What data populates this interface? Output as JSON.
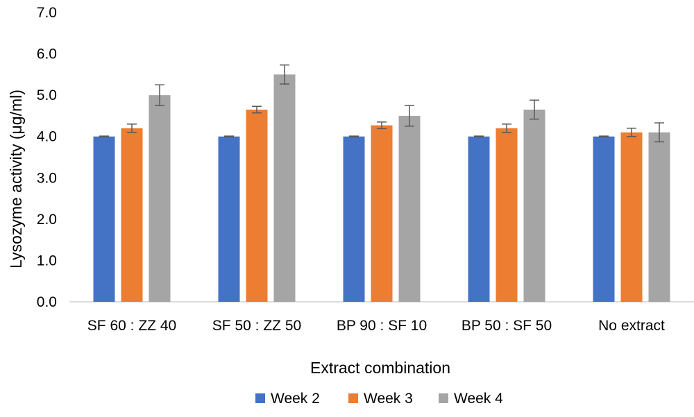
{
  "chart_data": {
    "type": "bar",
    "xlabel": "Extract combination",
    "ylabel": "Lysozyme activity (μg/ml)",
    "ylim": [
      0,
      7
    ],
    "yticks": [
      "0.0",
      "1.0",
      "2.0",
      "3.0",
      "4.0",
      "5.0",
      "6.0",
      "7.0"
    ],
    "grid": false,
    "legend_position": "bottom",
    "categories": [
      "SF 60 : ZZ 40",
      "SF 50 : ZZ 50",
      "BP 90 : SF 10",
      "BP 50 : SF 50",
      "No extract"
    ],
    "series": [
      {
        "name": "Week 2",
        "color": "#4472C4",
        "values": [
          4.0,
          4.0,
          4.0,
          4.0,
          4.0
        ],
        "errors": [
          0.01,
          0.01,
          0.01,
          0.01,
          0.01
        ]
      },
      {
        "name": "Week 3",
        "color": "#ED7D31",
        "values": [
          4.2,
          4.65,
          4.27,
          4.2,
          4.1
        ],
        "errors": [
          0.1,
          0.08,
          0.08,
          0.1,
          0.1
        ]
      },
      {
        "name": "Week 4",
        "color": "#A5A5A5",
        "values": [
          5.0,
          5.5,
          4.5,
          4.65,
          4.1
        ],
        "errors": [
          0.25,
          0.23,
          0.25,
          0.23,
          0.23
        ]
      }
    ]
  }
}
